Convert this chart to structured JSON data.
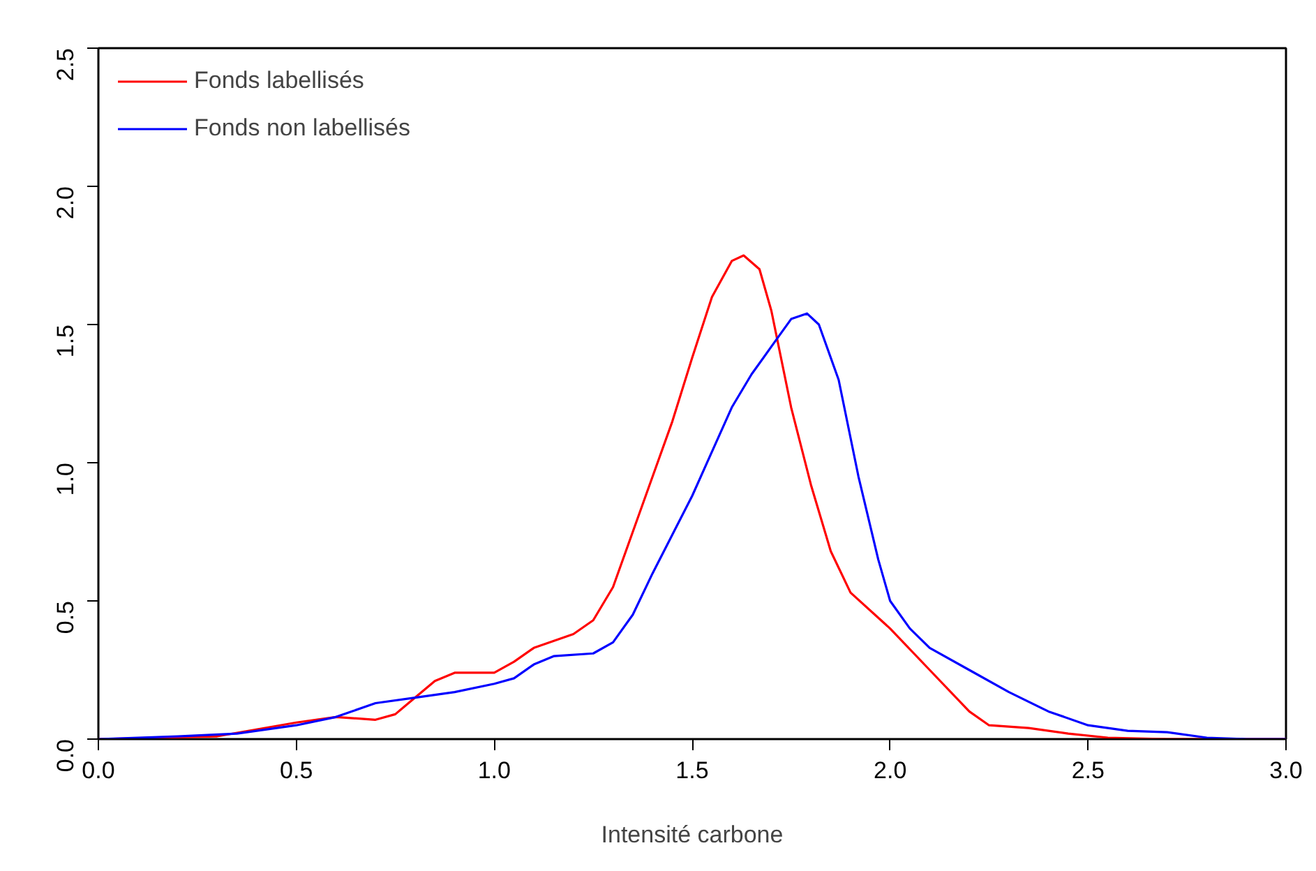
{
  "chart_data": {
    "type": "line",
    "xlabel": "Intensité carbone",
    "xlim": [
      0,
      3
    ],
    "ylim": [
      0,
      2.5
    ],
    "xticks": [
      {
        "value": 0,
        "label": "0.0"
      },
      {
        "value": 0.5,
        "label": "0.5"
      },
      {
        "value": 1,
        "label": "1.0"
      },
      {
        "value": 1.5,
        "label": "1.5"
      },
      {
        "value": 2,
        "label": "2.0"
      },
      {
        "value": 2.5,
        "label": "2.5"
      },
      {
        "value": 3,
        "label": "3.0"
      }
    ],
    "yticks": [
      {
        "value": 0,
        "label": "0.0"
      },
      {
        "value": 0.5,
        "label": "0.5"
      },
      {
        "value": 1,
        "label": "1.0"
      },
      {
        "value": 1.5,
        "label": "1.5"
      },
      {
        "value": 2,
        "label": "2.0"
      },
      {
        "value": 2.5,
        "label": "2.5"
      }
    ],
    "grid": false,
    "legend": "top left",
    "marker": "none",
    "line_style": "solid",
    "series": [
      {
        "name": "Fonds labellisés",
        "color": "#ff0000",
        "x": [
          0,
          0.3,
          0.5,
          0.6,
          0.7,
          0.75,
          0.8,
          0.85,
          0.9,
          0.95,
          1.0,
          1.05,
          1.1,
          1.2,
          1.25,
          1.3,
          1.35,
          1.4,
          1.45,
          1.5,
          1.55,
          1.6,
          1.63,
          1.67,
          1.7,
          1.75,
          1.8,
          1.85,
          1.9,
          2.0,
          2.1,
          2.2,
          2.25,
          2.35,
          2.45,
          2.55,
          2.7,
          3.0
        ],
        "values": [
          0,
          0.01,
          0.06,
          0.08,
          0.07,
          0.09,
          0.15,
          0.21,
          0.24,
          0.24,
          0.24,
          0.28,
          0.33,
          0.38,
          0.43,
          0.55,
          0.75,
          0.95,
          1.15,
          1.38,
          1.6,
          1.73,
          1.75,
          1.7,
          1.55,
          1.2,
          0.92,
          0.68,
          0.53,
          0.4,
          0.25,
          0.1,
          0.05,
          0.04,
          0.02,
          0.005,
          0,
          0
        ]
      },
      {
        "name": "Fonds non labellisés",
        "color": "#0000ff",
        "x": [
          0,
          0.2,
          0.35,
          0.5,
          0.6,
          0.7,
          0.8,
          0.9,
          1.0,
          1.05,
          1.1,
          1.15,
          1.25,
          1.3,
          1.35,
          1.4,
          1.5,
          1.6,
          1.65,
          1.7,
          1.75,
          1.79,
          1.82,
          1.87,
          1.92,
          1.97,
          2.0,
          2.05,
          2.1,
          2.2,
          2.3,
          2.4,
          2.5,
          2.6,
          2.7,
          2.8,
          2.9,
          3.0
        ],
        "values": [
          0,
          0.01,
          0.02,
          0.05,
          0.08,
          0.13,
          0.15,
          0.17,
          0.2,
          0.22,
          0.27,
          0.3,
          0.31,
          0.35,
          0.45,
          0.6,
          0.88,
          1.2,
          1.32,
          1.42,
          1.52,
          1.54,
          1.5,
          1.3,
          0.95,
          0.65,
          0.5,
          0.4,
          0.33,
          0.25,
          0.17,
          0.1,
          0.05,
          0.03,
          0.025,
          0.005,
          0,
          0
        ]
      }
    ]
  }
}
